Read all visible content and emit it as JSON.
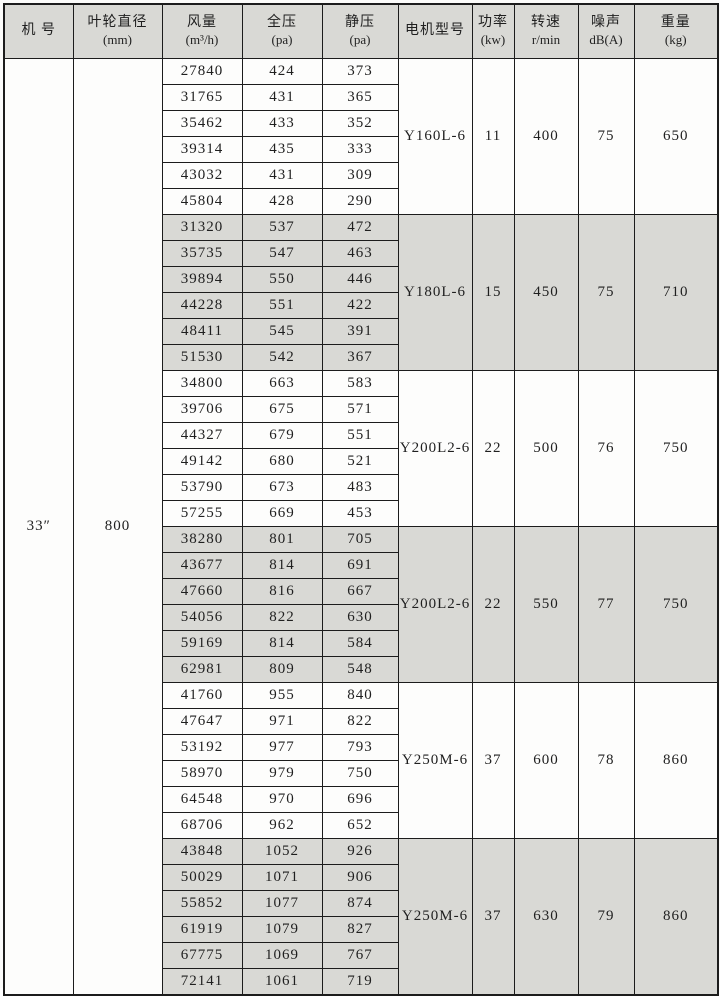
{
  "table": {
    "headers": [
      {
        "line1": "机 号",
        "line2": ""
      },
      {
        "line1": "叶轮直径",
        "line2": "(mm)"
      },
      {
        "line1": "风量",
        "line2": "(m³/h)"
      },
      {
        "line1": "全压",
        "line2": "(pa)"
      },
      {
        "line1": "静压",
        "line2": "(pa)"
      },
      {
        "line1": "电机型号",
        "line2": ""
      },
      {
        "line1": "功率",
        "line2": "(kw)"
      },
      {
        "line1": "转速",
        "line2": "r/min"
      },
      {
        "line1": "噪声",
        "line2": "dB(A)"
      },
      {
        "line1": "重量",
        "line2": "(kg)"
      }
    ],
    "machine_no": "33″",
    "impeller_diameter": "800",
    "groups": [
      {
        "motor_model": "Y160L-6",
        "power_kw": "11",
        "speed_rpm": "400",
        "noise_dba": "75",
        "weight_kg": "650",
        "shaded": false,
        "rows": [
          {
            "airflow": "27840",
            "total_pressure": "424",
            "static_pressure": "373"
          },
          {
            "airflow": "31765",
            "total_pressure": "431",
            "static_pressure": "365"
          },
          {
            "airflow": "35462",
            "total_pressure": "433",
            "static_pressure": "352"
          },
          {
            "airflow": "39314",
            "total_pressure": "435",
            "static_pressure": "333"
          },
          {
            "airflow": "43032",
            "total_pressure": "431",
            "static_pressure": "309"
          },
          {
            "airflow": "45804",
            "total_pressure": "428",
            "static_pressure": "290"
          }
        ]
      },
      {
        "motor_model": "Y180L-6",
        "power_kw": "15",
        "speed_rpm": "450",
        "noise_dba": "75",
        "weight_kg": "710",
        "shaded": true,
        "rows": [
          {
            "airflow": "31320",
            "total_pressure": "537",
            "static_pressure": "472"
          },
          {
            "airflow": "35735",
            "total_pressure": "547",
            "static_pressure": "463"
          },
          {
            "airflow": "39894",
            "total_pressure": "550",
            "static_pressure": "446"
          },
          {
            "airflow": "44228",
            "total_pressure": "551",
            "static_pressure": "422"
          },
          {
            "airflow": "48411",
            "total_pressure": "545",
            "static_pressure": "391"
          },
          {
            "airflow": "51530",
            "total_pressure": "542",
            "static_pressure": "367"
          }
        ]
      },
      {
        "motor_model": "Y200L2-6",
        "power_kw": "22",
        "speed_rpm": "500",
        "noise_dba": "76",
        "weight_kg": "750",
        "shaded": false,
        "rows": [
          {
            "airflow": "34800",
            "total_pressure": "663",
            "static_pressure": "583"
          },
          {
            "airflow": "39706",
            "total_pressure": "675",
            "static_pressure": "571"
          },
          {
            "airflow": "44327",
            "total_pressure": "679",
            "static_pressure": "551"
          },
          {
            "airflow": "49142",
            "total_pressure": "680",
            "static_pressure": "521"
          },
          {
            "airflow": "53790",
            "total_pressure": "673",
            "static_pressure": "483"
          },
          {
            "airflow": "57255",
            "total_pressure": "669",
            "static_pressure": "453"
          }
        ]
      },
      {
        "motor_model": "Y200L2-6",
        "power_kw": "22",
        "speed_rpm": "550",
        "noise_dba": "77",
        "weight_kg": "750",
        "shaded": true,
        "rows": [
          {
            "airflow": "38280",
            "total_pressure": "801",
            "static_pressure": "705"
          },
          {
            "airflow": "43677",
            "total_pressure": "814",
            "static_pressure": "691"
          },
          {
            "airflow": "47660",
            "total_pressure": "816",
            "static_pressure": "667"
          },
          {
            "airflow": "54056",
            "total_pressure": "822",
            "static_pressure": "630"
          },
          {
            "airflow": "59169",
            "total_pressure": "814",
            "static_pressure": "584"
          },
          {
            "airflow": "62981",
            "total_pressure": "809",
            "static_pressure": "548"
          }
        ]
      },
      {
        "motor_model": "Y250M-6",
        "power_kw": "37",
        "speed_rpm": "600",
        "noise_dba": "78",
        "weight_kg": "860",
        "shaded": false,
        "rows": [
          {
            "airflow": "41760",
            "total_pressure": "955",
            "static_pressure": "840"
          },
          {
            "airflow": "47647",
            "total_pressure": "971",
            "static_pressure": "822"
          },
          {
            "airflow": "53192",
            "total_pressure": "977",
            "static_pressure": "793"
          },
          {
            "airflow": "58970",
            "total_pressure": "979",
            "static_pressure": "750"
          },
          {
            "airflow": "64548",
            "total_pressure": "970",
            "static_pressure": "696"
          },
          {
            "airflow": "68706",
            "total_pressure": "962",
            "static_pressure": "652"
          }
        ]
      },
      {
        "motor_model": "Y250M-6",
        "power_kw": "37",
        "speed_rpm": "630",
        "noise_dba": "79",
        "weight_kg": "860",
        "shaded": true,
        "rows": [
          {
            "airflow": "43848",
            "total_pressure": "1052",
            "static_pressure": "926"
          },
          {
            "airflow": "50029",
            "total_pressure": "1071",
            "static_pressure": "906"
          },
          {
            "airflow": "55852",
            "total_pressure": "1077",
            "static_pressure": "874"
          },
          {
            "airflow": "61919",
            "total_pressure": "1079",
            "static_pressure": "827"
          },
          {
            "airflow": "67775",
            "total_pressure": "1069",
            "static_pressure": "767"
          },
          {
            "airflow": "72141",
            "total_pressure": "1061",
            "static_pressure": "719"
          }
        ]
      }
    ],
    "colors": {
      "shaded_row_bg": "#d9d9d5",
      "plain_row_bg": "#fdfdfc",
      "border": "#1c1c1c",
      "text": "#1f1f1f"
    }
  }
}
